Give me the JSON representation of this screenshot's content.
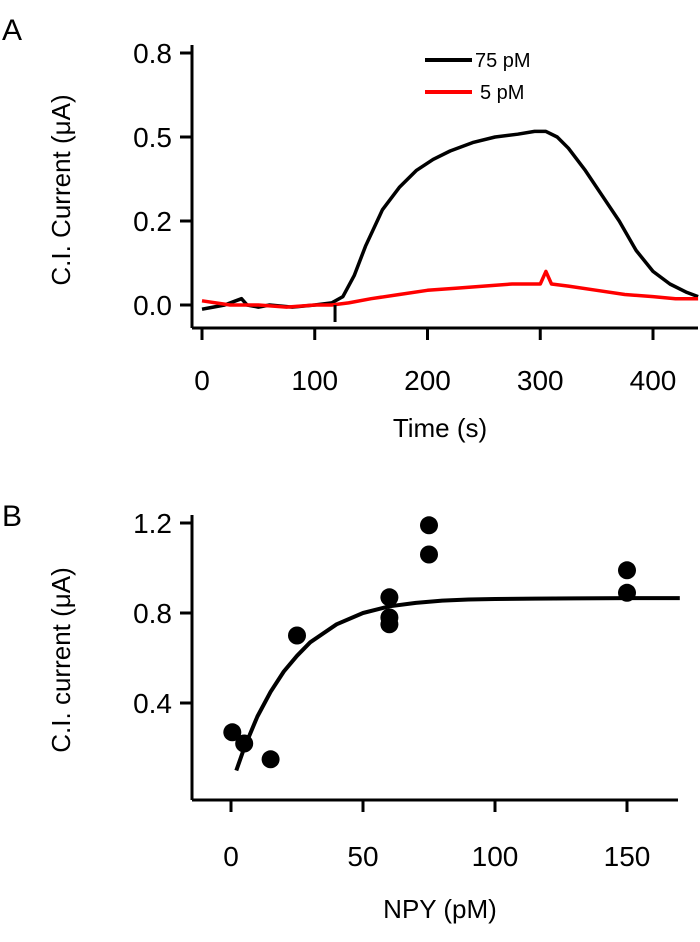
{
  "panels": {
    "a": {
      "letter": "A"
    },
    "b": {
      "letter": "B"
    }
  },
  "chart_data": [
    {
      "type": "line",
      "panel": "A",
      "title": "",
      "xlabel": "Time (s)",
      "ylabel": "C.I. Current (μA)",
      "xlim": [
        -5,
        440
      ],
      "ylim": [
        -0.05,
        0.8
      ],
      "xticks": [
        0,
        100,
        200,
        300,
        400
      ],
      "xtick_labels": [
        "0",
        "100",
        "200",
        "300",
        "400"
      ],
      "yticks": [
        0.0,
        0.2,
        0.5,
        0.8
      ],
      "ytick_labels": [
        "0.0",
        "0.2",
        "0.5",
        "0.8"
      ],
      "legend": "top-center",
      "series": [
        {
          "name": "75 pM",
          "color": "#000000",
          "x": [
            0,
            10,
            20,
            30,
            35,
            40,
            50,
            60,
            80,
            100,
            115,
            125,
            135,
            145,
            160,
            175,
            190,
            205,
            220,
            240,
            260,
            280,
            295,
            305,
            315,
            325,
            340,
            355,
            370,
            385,
            400,
            415,
            430,
            440
          ],
          "y": [
            -0.01,
            -0.005,
            0.0,
            0.01,
            0.015,
            0.0,
            -0.005,
            0.0,
            -0.005,
            0.0,
            0.005,
            0.02,
            0.07,
            0.14,
            0.24,
            0.32,
            0.38,
            0.42,
            0.45,
            0.48,
            0.5,
            0.51,
            0.52,
            0.52,
            0.5,
            0.46,
            0.38,
            0.29,
            0.2,
            0.13,
            0.08,
            0.05,
            0.03,
            0.02
          ]
        },
        {
          "name": "5 pM",
          "color": "#ff0000",
          "x": [
            0,
            25,
            50,
            75,
            100,
            115,
            130,
            150,
            175,
            200,
            225,
            250,
            275,
            300,
            305,
            310,
            325,
            350,
            375,
            400,
            420,
            440
          ],
          "y": [
            0.01,
            0.0,
            0.0,
            -0.005,
            0.0,
            0.0,
            0.005,
            0.015,
            0.025,
            0.035,
            0.04,
            0.045,
            0.05,
            0.05,
            0.08,
            0.05,
            0.045,
            0.035,
            0.025,
            0.02,
            0.015,
            0.015
          ]
        }
      ]
    },
    {
      "type": "scatter",
      "panel": "B",
      "title": "",
      "xlabel": "NPY (pM)",
      "ylabel": "C.I. current (μA)",
      "xlim": [
        -15,
        170
      ],
      "ylim": [
        0.0,
        1.25
      ],
      "xticks": [
        0,
        50,
        100,
        150
      ],
      "xtick_labels": [
        "0",
        "50",
        "100",
        "150"
      ],
      "yticks": [
        0.4,
        0.8,
        1.2
      ],
      "ytick_labels": [
        "0.4",
        "0.8",
        "1.2"
      ],
      "points": {
        "x": [
          0.5,
          5,
          15,
          25,
          60,
          60,
          60,
          75,
          75,
          150,
          150
        ],
        "y": [
          0.27,
          0.22,
          0.15,
          0.7,
          0.87,
          0.78,
          0.75,
          1.19,
          1.06,
          0.99,
          0.89
        ]
      },
      "fit": {
        "x": [
          2,
          5,
          10,
          15,
          20,
          25,
          30,
          40,
          50,
          60,
          70,
          80,
          90,
          100,
          115,
          130,
          150,
          170
        ],
        "y": [
          0.1,
          0.2,
          0.34,
          0.45,
          0.54,
          0.61,
          0.67,
          0.75,
          0.8,
          0.83,
          0.845,
          0.855,
          0.86,
          0.862,
          0.864,
          0.865,
          0.866,
          0.866
        ]
      }
    }
  ]
}
